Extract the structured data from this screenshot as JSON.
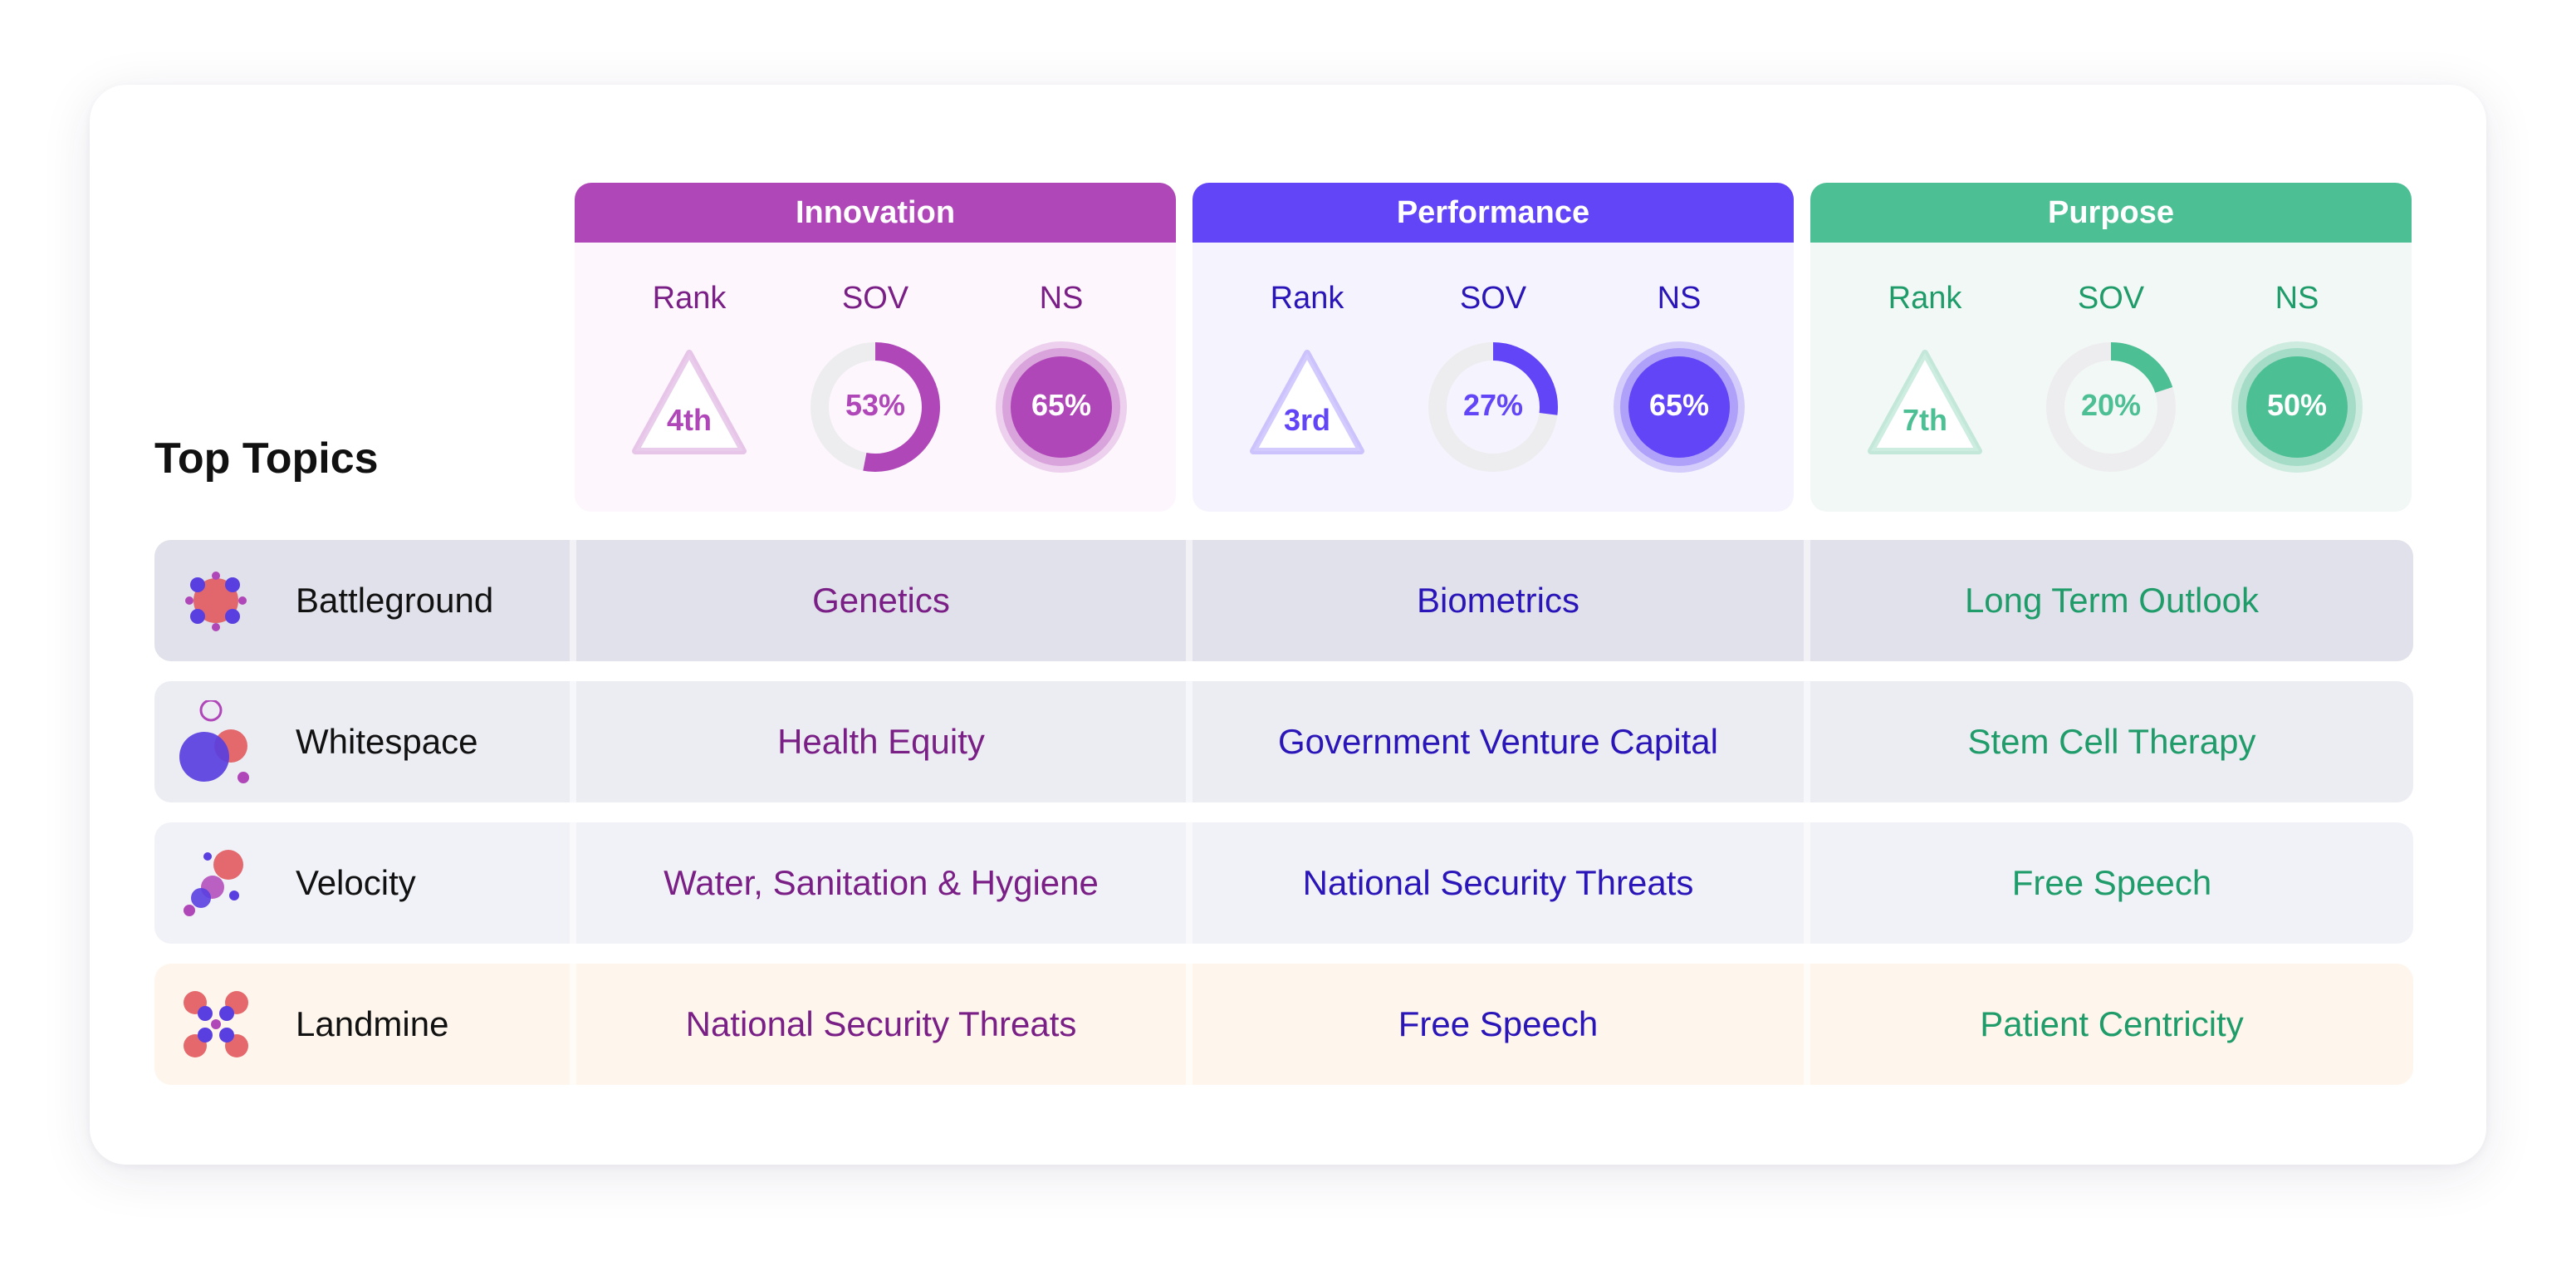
{
  "title": "Top Topics",
  "panels": [
    {
      "name": "Innovation",
      "accent": "#B047B8",
      "text_color": "#7A1F86",
      "panel_bg": "#FDF6FD",
      "labels": {
        "rank": "Rank",
        "sov": "SOV",
        "ns": "NS"
      },
      "rank": "4th",
      "sov": "53%",
      "sov_value": 53,
      "ns": "65%"
    },
    {
      "name": "Performance",
      "accent": "#6145F7",
      "text_color": "#2A16B8",
      "panel_bg": "#F5F4FE",
      "labels": {
        "rank": "Rank",
        "sov": "SOV",
        "ns": "NS"
      },
      "rank": "3rd",
      "sov": "27%",
      "sov_value": 27,
      "ns": "65%"
    },
    {
      "name": "Purpose",
      "accent": "#4CBF94",
      "text_color": "#1F9C6A",
      "panel_bg": "#F2F8F5",
      "labels": {
        "rank": "Rank",
        "sov": "SOV",
        "ns": "NS"
      },
      "rank": "7th",
      "sov": "20%",
      "sov_value": 20,
      "ns": "50%"
    }
  ],
  "rows": [
    {
      "name": "Battleground",
      "icon": "battleground-icon",
      "bg": "#E0E1EA",
      "cells": [
        "Genetics",
        "Biometrics",
        "Long Term Outlook"
      ]
    },
    {
      "name": "Whitespace",
      "icon": "whitespace-icon",
      "bg": "#ECEDF3",
      "cells": [
        "Health Equity",
        "Government Venture Capital",
        "Stem Cell Therapy"
      ]
    },
    {
      "name": "Velocity",
      "icon": "velocity-icon",
      "bg": "#F1F2F7",
      "cells": [
        "Water, Sanitation & Hygiene",
        "National Security Threats",
        "Free Speech"
      ]
    },
    {
      "name": "Landmine",
      "icon": "landmine-icon",
      "bg": "#FEF6EC",
      "cells": [
        "National Security Threats",
        "Free Speech",
        "Patient Centricity"
      ]
    }
  ]
}
